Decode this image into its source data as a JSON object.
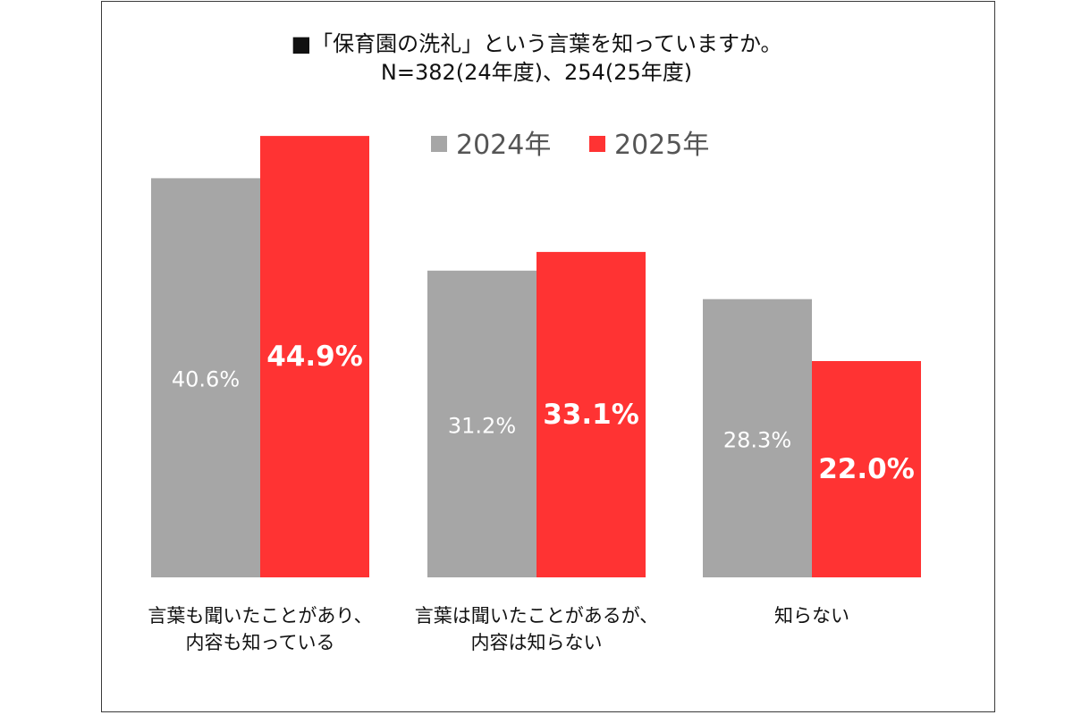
{
  "title": {
    "line1": "■「保育園の洗礼」という言葉を知っていますか。",
    "line2": "N=382(24年度)、254(25年度)"
  },
  "chart_data": {
    "type": "bar",
    "categories": [
      [
        "言葉も聞いたことがあり、",
        "内容も知っている"
      ],
      [
        "言葉は聞いたことがあるが、",
        "内容は知らない"
      ],
      [
        "知らない"
      ]
    ],
    "series": [
      {
        "name": "2024年",
        "values": [
          40.6,
          31.2,
          28.3
        ],
        "labels": [
          "40.6%",
          "31.2%",
          "28.3%"
        ],
        "color": "#a6a6a6"
      },
      {
        "name": "2025年",
        "values": [
          44.9,
          33.1,
          22.0
        ],
        "labels": [
          "44.9%",
          "33.1%",
          "22.0%"
        ],
        "color": "#ff3333"
      }
    ],
    "legend_position": "top-right",
    "grid": false,
    "unit": "%"
  }
}
